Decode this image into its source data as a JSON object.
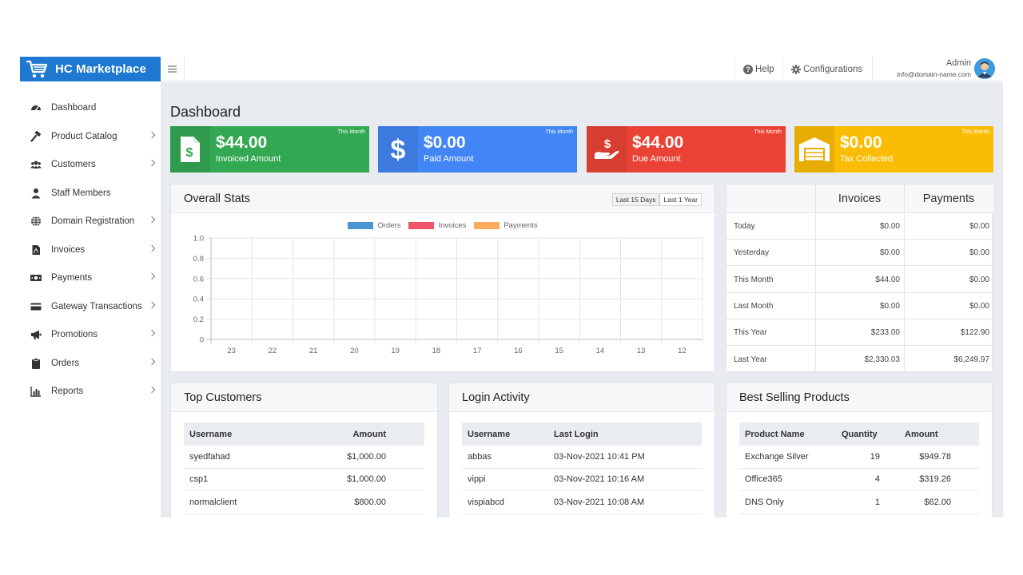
{
  "brand": {
    "name": "HC Marketplace"
  },
  "topbar": {
    "help_label": "Help",
    "config_label": "Configurations",
    "user_name": "Admin",
    "user_email": "info@domain-name.com"
  },
  "sidebar": {
    "items": [
      {
        "label": "Dashboard",
        "icon": "dashboard-icon",
        "has_children": false
      },
      {
        "label": "Product Catalog",
        "icon": "hammer-icon",
        "has_children": true
      },
      {
        "label": "Customers",
        "icon": "users-icon",
        "has_children": true
      },
      {
        "label": "Staff Members",
        "icon": "user-tie-icon",
        "has_children": false
      },
      {
        "label": "Domain Registration",
        "icon": "globe-icon",
        "has_children": true
      },
      {
        "label": "Invoices",
        "icon": "file-pdf-icon",
        "has_children": true
      },
      {
        "label": "Payments",
        "icon": "money-bill-icon",
        "has_children": true
      },
      {
        "label": "Gateway Transactions",
        "icon": "credit-card-icon",
        "has_children": true
      },
      {
        "label": "Promotions",
        "icon": "bullhorn-icon",
        "has_children": true
      },
      {
        "label": "Orders",
        "icon": "clipboard-icon",
        "has_children": true
      },
      {
        "label": "Reports",
        "icon": "bar-chart-icon",
        "has_children": true
      }
    ]
  },
  "page": {
    "title": "Dashboard"
  },
  "stats": [
    {
      "value": "$44.00",
      "label": "Invoiced Amount",
      "period": "This Month",
      "color": "#33a852",
      "icon": "invoice-dollar-icon"
    },
    {
      "value": "$0.00",
      "label": "Paid Amount",
      "period": "This Month",
      "color": "#4285f4",
      "icon": "dollar-icon"
    },
    {
      "value": "$44.00",
      "label": "Due Amount",
      "period": "This Month",
      "color": "#ea4335",
      "icon": "hand-dollar-icon"
    },
    {
      "value": "$0.00",
      "label": "Tax Collected",
      "period": "This Month",
      "color": "#fbbc05",
      "icon": "warehouse-icon"
    }
  ],
  "overall_stats": {
    "title": "Overall Stats",
    "range_options": [
      "Last 15 Days",
      "Last 1 Year"
    ],
    "selected_range": "Last 15 Days"
  },
  "chart_data": {
    "type": "bar",
    "categories": [
      "23",
      "22",
      "21",
      "20",
      "19",
      "18",
      "17",
      "16",
      "15",
      "14",
      "13",
      "12"
    ],
    "series": [
      {
        "name": "Orders",
        "color": "#4b96d1",
        "values": [
          0,
          0,
          0,
          0,
          0,
          0,
          0,
          0,
          0,
          0,
          0,
          0
        ]
      },
      {
        "name": "Invoices",
        "color": "#ef5468",
        "values": [
          0,
          0,
          0,
          0,
          0,
          0,
          0,
          0,
          0,
          0,
          0,
          0
        ]
      },
      {
        "name": "Payments",
        "color": "#f9ad5c",
        "values": [
          0,
          0,
          0,
          0,
          0,
          0,
          0,
          0,
          0,
          0,
          0,
          0
        ]
      }
    ],
    "ylim": [
      0,
      1
    ],
    "yticks": [
      "1.0",
      "0.8",
      "0.6",
      "0.4",
      "0.2",
      "0"
    ],
    "grid": true,
    "legend": "top-center"
  },
  "summary": {
    "headers": [
      "Invoices",
      "Payments"
    ],
    "rows": [
      {
        "label": "Today",
        "invoices": "$0.00",
        "payments": "$0.00"
      },
      {
        "label": "Yesterday",
        "invoices": "$0.00",
        "payments": "$0.00"
      },
      {
        "label": "This Month",
        "invoices": "$44.00",
        "payments": "$0.00"
      },
      {
        "label": "Last Month",
        "invoices": "$0.00",
        "payments": "$0.00"
      },
      {
        "label": "This Year",
        "invoices": "$233.00",
        "payments": "$122.90"
      },
      {
        "label": "Last Year",
        "invoices": "$2,330.03",
        "payments": "$6,249.97"
      }
    ]
  },
  "top_customers": {
    "title": "Top Customers",
    "headers": [
      "Username",
      "Amount"
    ],
    "rows": [
      {
        "username": "syedfahad",
        "amount": "$1,000.00"
      },
      {
        "username": "csp1",
        "amount": "$1,000.00"
      },
      {
        "username": "normalclient",
        "amount": "$800.00"
      }
    ]
  },
  "login_activity": {
    "title": "Login Activity",
    "headers": [
      "Username",
      "Last Login"
    ],
    "rows": [
      {
        "username": "abbas",
        "last_login": "03-Nov-2021 10:41 PM"
      },
      {
        "username": "vippi",
        "last_login": "03-Nov-2021 10:16 AM"
      },
      {
        "username": "vispiabcd",
        "last_login": "03-Nov-2021 10:08 AM"
      }
    ]
  },
  "best_selling": {
    "title": "Best Selling Products",
    "headers": [
      "Product Name",
      "Quantity",
      "Amount"
    ],
    "rows": [
      {
        "product": "Exchange Silver",
        "quantity": "19",
        "amount": "$949.78"
      },
      {
        "product": "Office365",
        "quantity": "4",
        "amount": "$319.26"
      },
      {
        "product": "DNS Only",
        "quantity": "1",
        "amount": "$62.00"
      }
    ]
  }
}
